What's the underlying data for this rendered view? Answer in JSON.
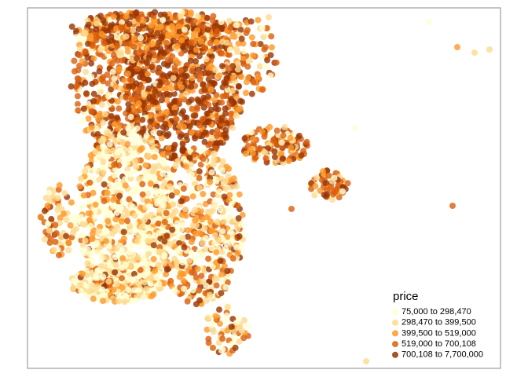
{
  "legend": {
    "title": "price",
    "entries": [
      {
        "label": "75,000 to 298,470",
        "color": "#ffffd4"
      },
      {
        "label": "298,470 to 399,500",
        "color": "#fed98e"
      },
      {
        "label": "399,500 to 519,000",
        "color": "#fe9929"
      },
      {
        "label": "519,000 to 700,108",
        "color": "#d95f0e"
      },
      {
        "label": "700,108 to 7,700,000",
        "color": "#993404"
      }
    ]
  }
}
